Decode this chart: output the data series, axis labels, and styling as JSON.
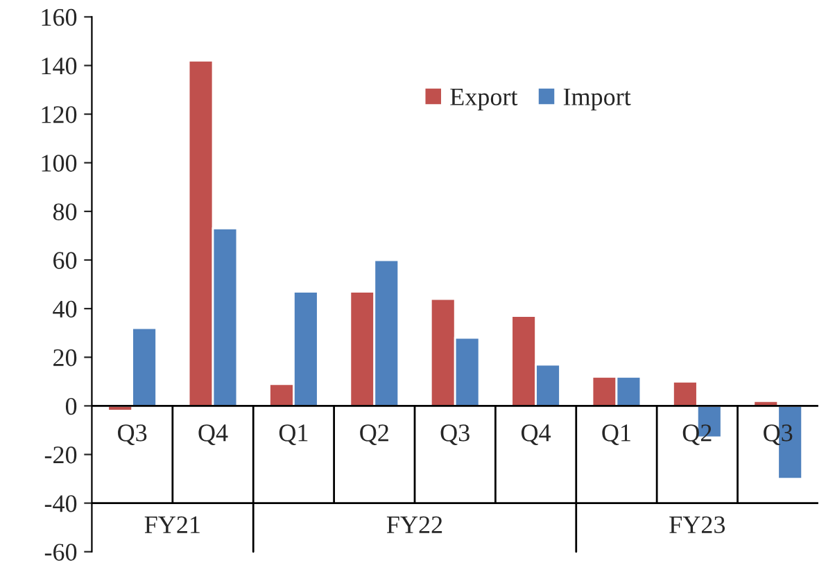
{
  "chart_data": {
    "type": "bar",
    "categories": [
      "Q3",
      "Q4",
      "Q1",
      "Q2",
      "Q3",
      "Q4",
      "Q1",
      "Q2",
      "Q3"
    ],
    "series": [
      {
        "name": "Export",
        "color": "#c0504d",
        "values": [
          -2,
          142,
          9,
          47,
          44,
          37,
          12,
          10,
          2
        ]
      },
      {
        "name": "Import",
        "color": "#4f81bd",
        "values": [
          32,
          73,
          47,
          60,
          28,
          17,
          12,
          -13,
          -30
        ]
      }
    ],
    "annotations": [
      "FY21",
      "FY22",
      "FY23"
    ],
    "ylim": [
      -60,
      160
    ],
    "yticks": [
      -60,
      -40,
      -20,
      0,
      20,
      40,
      60,
      80,
      100,
      120,
      140,
      160
    ],
    "legend": "top"
  }
}
